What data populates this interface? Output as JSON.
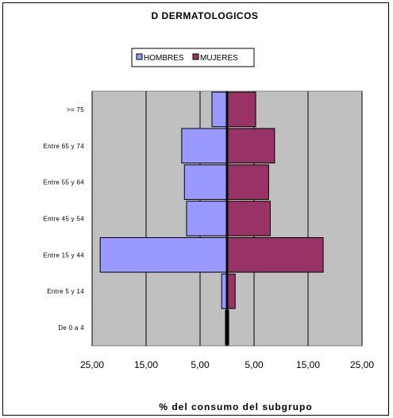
{
  "chart_data": {
    "type": "bar",
    "orientation": "horizontal",
    "subtype": "population-pyramid",
    "title": "D DERMATOLOGICOS",
    "xlabel": "% del consumo del subgrupo",
    "categories": [
      "De 0 a 4",
      "Entre 5 y 14",
      "Entre 15 y 44",
      "Entre 45 y 54",
      "Entre 55 y 64",
      "Entre 65 y 74",
      ">= 75"
    ],
    "series": [
      {
        "name": "HOMBRES",
        "color": "#9999FF",
        "values": [
          0.3,
          1.0,
          23.5,
          7.5,
          7.9,
          8.4,
          2.8
        ]
      },
      {
        "name": "MUJERES",
        "color": "#993366",
        "values": [
          0.3,
          1.5,
          17.8,
          8.0,
          7.7,
          8.8,
          5.3
        ]
      }
    ],
    "xlim": [
      -25,
      25
    ],
    "xtick_values": [
      -25,
      -15,
      -5,
      5,
      15,
      25
    ],
    "xtick_labels": [
      "25,00",
      "15,00",
      "5,00",
      "5,00",
      "15,00",
      "25,00"
    ],
    "legend_position": "top-center",
    "plot_background": "#C0C0C0",
    "grid": true
  }
}
